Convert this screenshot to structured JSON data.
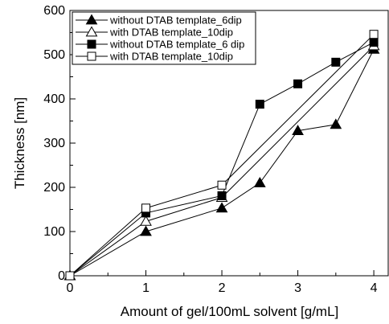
{
  "chart_data": {
    "type": "line",
    "title": "",
    "xlabel": "Amount of gel/100mL solvent [g/mL]",
    "ylabel": "Thickness [nm]",
    "xlim": [
      0,
      4.2
    ],
    "ylim": [
      0,
      600
    ],
    "x_ticks": [
      0,
      1,
      2,
      3,
      4
    ],
    "y_ticks": [
      0,
      100,
      200,
      300,
      400,
      500,
      600
    ],
    "grid": false,
    "legend_position": "top-left",
    "series": [
      {
        "name": "without DTAB template_6dip",
        "marker": "filled-triangle",
        "x": [
          0,
          1,
          2,
          2.5,
          3,
          3.5,
          4
        ],
        "y": [
          0,
          100,
          153,
          210,
          328,
          342,
          512
        ]
      },
      {
        "name": "with DTAB template_10dip",
        "marker": "open-triangle",
        "x": [
          0,
          1,
          2,
          4
        ],
        "y": [
          0,
          123,
          177,
          520
        ]
      },
      {
        "name": "without DTAB template_6 dip",
        "marker": "filled-square",
        "x": [
          0,
          1,
          2,
          2.5,
          3,
          3.5,
          4
        ],
        "y": [
          0,
          142,
          181,
          388,
          434,
          483,
          528
        ]
      },
      {
        "name": "with DTAB template_10dip",
        "marker": "open-square",
        "x": [
          0,
          1,
          2,
          4
        ],
        "y": [
          0,
          153,
          205,
          546
        ]
      }
    ]
  }
}
